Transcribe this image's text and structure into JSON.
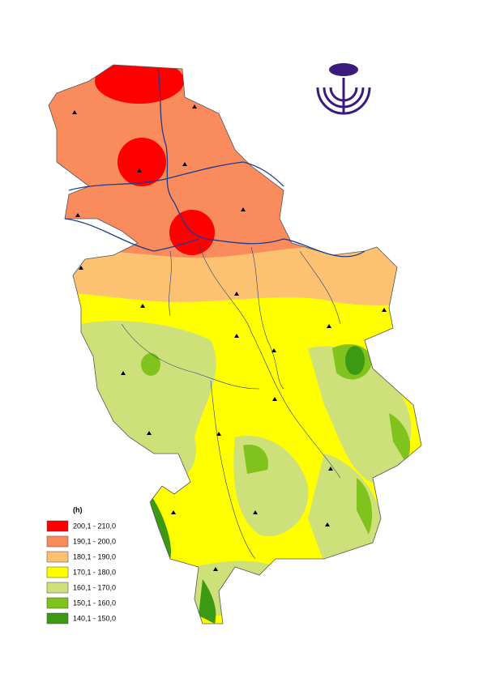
{
  "legend": {
    "title": "(h)",
    "items": [
      {
        "label": "200,1 - 210,0",
        "color": "#ff0000"
      },
      {
        "label": "190,1 - 200,0",
        "color": "#f98b5c"
      },
      {
        "label": "180,1 - 190,0",
        "color": "#fdc271"
      },
      {
        "label": "170,1 - 180,0",
        "color": "#ffff00"
      },
      {
        "label": "160,1 - 170,0",
        "color": "#cde07a"
      },
      {
        "label": "150,1 - 160,0",
        "color": "#7fc31c"
      },
      {
        "label": "140,1 - 150,0",
        "color": "#3c9a12"
      }
    ]
  }
}
